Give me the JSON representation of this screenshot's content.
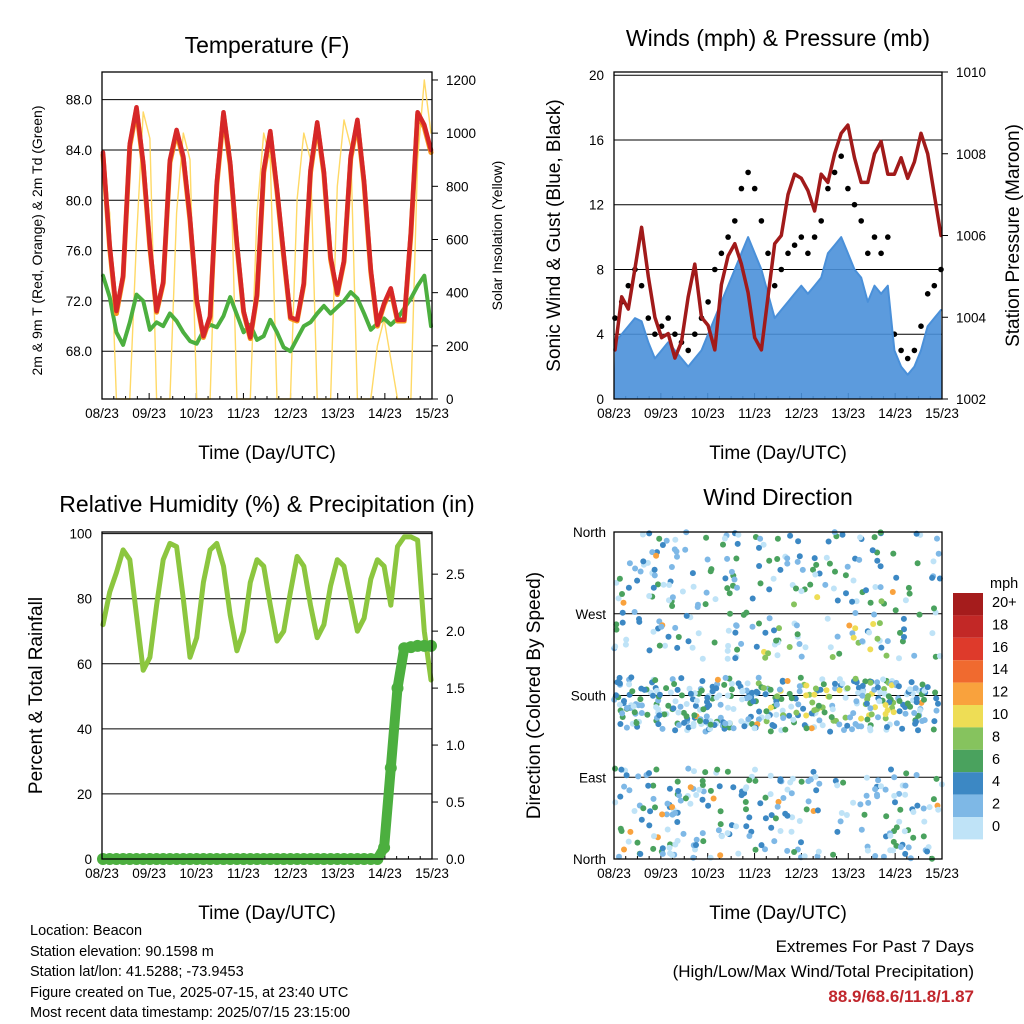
{
  "chart_data": [
    {
      "type": "line",
      "title": "Temperature (F)",
      "xlabel": "Time (Day/UTC)",
      "ylabel": "2m & 9m T (Red, Orange) & 2m Td (Green)",
      "ylabel_right": "Solar Insolation (Yellow)",
      "x_ticks": [
        "08/23",
        "09/23",
        "10/23",
        "11/23",
        "12/23",
        "13/23",
        "14/23",
        "15/23"
      ],
      "y_ticks": [
        "68.0",
        "72.0",
        "76.0",
        "80.0",
        "84.0",
        "88.0"
      ],
      "y_right_ticks": [
        "0",
        "200",
        "400",
        "600",
        "800",
        "1000",
        "1200"
      ],
      "ylim": [
        64.2,
        90.2
      ],
      "ylim_right": [
        0,
        1230
      ],
      "grid": true,
      "series": [
        {
          "name": "2m T",
          "color": "#d62728",
          "values": [
            83.8,
            76.4,
            71.2,
            74.0,
            84.5,
            87.4,
            83.0,
            76.4,
            71.2,
            73.5,
            83.2,
            85.6,
            83.5,
            78.6,
            72.1,
            69.2,
            70.8,
            81.4,
            87.0,
            83.0,
            76.6,
            71.2,
            69.1,
            72.5,
            82.4,
            85.5,
            80.9,
            75.7,
            70.7,
            70.5,
            73.4,
            82.4,
            86.2,
            82.3,
            75.5,
            72.6,
            75.2,
            83.5,
            86.4,
            81.5,
            74.5,
            70.1,
            71.8,
            73.0,
            70.5,
            70.5,
            77.5,
            87.0,
            86.0,
            84.0
          ]
        },
        {
          "name": "9m T",
          "color": "#f7941d",
          "values": [
            83.6,
            76.2,
            71.0,
            73.9,
            84.3,
            87.2,
            82.8,
            76.2,
            71.1,
            73.4,
            83.0,
            85.4,
            83.3,
            78.4,
            72.0,
            69.1,
            70.7,
            81.2,
            86.8,
            82.8,
            76.4,
            71.1,
            69.0,
            72.4,
            82.2,
            85.3,
            80.7,
            75.5,
            70.6,
            70.4,
            73.3,
            82.2,
            86.0,
            82.1,
            75.3,
            72.5,
            75.1,
            83.3,
            86.2,
            81.3,
            74.3,
            70.0,
            71.7,
            72.9,
            70.4,
            70.4,
            77.3,
            86.8,
            85.8,
            83.8
          ]
        },
        {
          "name": "2m Td",
          "color": "#4caf3f",
          "values": [
            74.0,
            72.3,
            69.5,
            68.5,
            70.3,
            72.5,
            72.0,
            69.7,
            70.3,
            70.0,
            71.0,
            70.4,
            69.5,
            68.8,
            68.6,
            69.6,
            70.1,
            69.9,
            70.8,
            72.3,
            70.9,
            69.5,
            70.1,
            68.9,
            69.2,
            70.5,
            69.5,
            68.3,
            68.0,
            69.0,
            70.0,
            70.3,
            71.0,
            71.6,
            71.0,
            71.5,
            72.0,
            72.7,
            72.2,
            71.0,
            69.7,
            70.2,
            70.6,
            70.1,
            70.6,
            71.4,
            72.2,
            73.2,
            74.0,
            70.0
          ]
        },
        {
          "name": "Solar Insolation",
          "color": "#ffd966",
          "axis": "right",
          "values": [
            850,
            700,
            0,
            0,
            0,
            600,
            1080,
            980,
            0,
            0,
            0,
            700,
            1000,
            900,
            0,
            0,
            0,
            800,
            1050,
            950,
            0,
            0,
            0,
            700,
            1000,
            900,
            0,
            0,
            0,
            750,
            1000,
            900,
            0,
            0,
            0,
            800,
            1050,
            950,
            0,
            0,
            0,
            200,
            300,
            150,
            0,
            0,
            0,
            900,
            1200,
            1000
          ]
        }
      ]
    },
    {
      "type": "scatter",
      "title": "Winds (mph) & Pressure (mb)",
      "xlabel": "Time (Day/UTC)",
      "ylabel": "Sonic Wind & Gust (Blue, Black)",
      "ylabel_right": "Station Pressure (Maroon)",
      "x_ticks": [
        "08/23",
        "09/23",
        "10/23",
        "11/23",
        "12/23",
        "13/23",
        "14/23",
        "15/23"
      ],
      "y_ticks": [
        "0",
        "4",
        "8",
        "12",
        "16",
        "20"
      ],
      "y_right_ticks": [
        "1002",
        "1004",
        "1006",
        "1008",
        "1010"
      ],
      "ylim": [
        0,
        20.2
      ],
      "ylim_right": [
        1002,
        1010
      ],
      "grid": true,
      "series": [
        {
          "name": "Sonic Wind",
          "color": "#4a90d9",
          "values": [
            3.5,
            4.0,
            4.5,
            5.0,
            4.8,
            3.5,
            2.5,
            3.0,
            3.5,
            3.0,
            2.5,
            2.0,
            2.5,
            3.0,
            4.0,
            5.0,
            6.0,
            7.0,
            8.0,
            9.0,
            10.0,
            9.0,
            8.0,
            6.5,
            5.0,
            5.5,
            6.0,
            6.5,
            7.0,
            6.5,
            7.0,
            7.5,
            9.0,
            9.5,
            10.0,
            9.0,
            8.0,
            7.5,
            6.0,
            7.0,
            6.5,
            7.0,
            3.0,
            2.0,
            1.5,
            2.0,
            3.0,
            4.5,
            5.0,
            5.5
          ]
        },
        {
          "name": "Gust",
          "color": "#000000",
          "values": [
            5.0,
            6.0,
            7.0,
            8.0,
            7.0,
            5.0,
            4.0,
            4.5,
            5.0,
            4.0,
            3.5,
            3.0,
            4.0,
            5.0,
            6.0,
            8.0,
            9.0,
            10.0,
            11.0,
            13.0,
            14.0,
            13.0,
            11.0,
            9.0,
            7.0,
            8.0,
            9.0,
            9.5,
            10.0,
            9.0,
            10.0,
            11.0,
            13.0,
            14.0,
            15.0,
            13.0,
            12.0,
            11.0,
            9.0,
            10.0,
            9.0,
            10.0,
            4.0,
            3.0,
            2.5,
            3.0,
            4.5,
            6.5,
            7.0,
            8.0
          ]
        },
        {
          "name": "Station Pressure",
          "color": "#a11a1a",
          "axis": "right",
          "values": [
            1003.2,
            1004.5,
            1004.2,
            1005.2,
            1006.2,
            1005.0,
            1004.0,
            1003.5,
            1003.6,
            1003.0,
            1003.4,
            1004.5,
            1005.3,
            1004.0,
            1003.8,
            1003.2,
            1004.8,
            1005.5,
            1005.8,
            1005.3,
            1004.6,
            1003.5,
            1003.2,
            1004.5,
            1005.8,
            1006.0,
            1007.0,
            1007.5,
            1007.4,
            1007.1,
            1006.6,
            1007.5,
            1007.3,
            1008.0,
            1008.5,
            1008.7,
            1007.9,
            1007.3,
            1007.3,
            1008.0,
            1008.3,
            1007.5,
            1007.5,
            1007.9,
            1007.4,
            1007.8,
            1008.5,
            1008.0,
            1007.0,
            1006.0
          ]
        }
      ]
    },
    {
      "type": "line",
      "title": "Relative Humidity (%) & Precipitation (in)",
      "xlabel": "Time (Day/UTC)",
      "ylabel": "Percent & Total Rainfall",
      "x_ticks": [
        "08/23",
        "09/23",
        "10/23",
        "11/23",
        "12/23",
        "13/23",
        "14/23",
        "15/23"
      ],
      "y_ticks": [
        "0",
        "20",
        "40",
        "60",
        "80",
        "100"
      ],
      "y_right_ticks": [
        "0.0",
        "0.5",
        "1.0",
        "1.5",
        "2.0",
        "2.5"
      ],
      "ylim": [
        0,
        100.5
      ],
      "ylim_right": [
        0,
        2.87
      ],
      "grid": true,
      "series": [
        {
          "name": "Relative Humidity",
          "color": "#8cc63f",
          "values": [
            72,
            82,
            88,
            95,
            92,
            75,
            58,
            62,
            78,
            92,
            97,
            96,
            80,
            62,
            68,
            85,
            95,
            97,
            90,
            75,
            64,
            70,
            85,
            92,
            90,
            78,
            67,
            70,
            82,
            93,
            90,
            78,
            68,
            72,
            84,
            92,
            90,
            80,
            70,
            74,
            86,
            92,
            90,
            78,
            96,
            99,
            99,
            98,
            70,
            55
          ]
        },
        {
          "name": "Total Precipitation",
          "color": "#4caf3f",
          "axis": "right",
          "values": [
            0,
            0,
            0,
            0,
            0,
            0,
            0,
            0,
            0,
            0,
            0,
            0,
            0,
            0,
            0,
            0,
            0,
            0,
            0,
            0,
            0,
            0,
            0,
            0,
            0,
            0,
            0,
            0,
            0,
            0,
            0,
            0,
            0,
            0,
            0,
            0,
            0,
            0,
            0,
            0,
            0,
            0,
            0.1,
            0.8,
            1.5,
            1.85,
            1.86,
            1.87,
            1.87,
            1.87
          ]
        }
      ]
    },
    {
      "type": "scatter",
      "title": "Wind Direction",
      "xlabel": "Time (Day/UTC)",
      "ylabel": "Direction (Colored By Speed)",
      "x_ticks": [
        "08/23",
        "09/23",
        "10/23",
        "11/23",
        "12/23",
        "13/23",
        "14/23",
        "15/23"
      ],
      "y_ticks": [
        "North",
        "East",
        "South",
        "West",
        "North"
      ],
      "ylim": [
        0,
        360
      ],
      "grid": true,
      "legend": {
        "title": "mph",
        "labels": [
          "20+",
          "18",
          "16",
          "14",
          "12",
          "10",
          "8",
          "6",
          "4",
          "2",
          "0"
        ],
        "colors": [
          "#a51c1c",
          "#c22826",
          "#de3a2b",
          "#f06a2f",
          "#f9a23d",
          "#eedd55",
          "#86c35e",
          "#4aa25e",
          "#3c88c4",
          "#7eb8e6",
          "#bfe3f7"
        ]
      }
    }
  ],
  "footer": {
    "location": "Location: Beacon",
    "elevation": "Station elevation: 90.1598 m",
    "latlon": "Station lat/lon: 41.5288; -73.9453",
    "created": "Figure created on Tue, 2025-07-15, at 23:40 UTC",
    "recent": "Most recent data timestamp: 2025/07/15 23:15:00"
  },
  "extremes": {
    "heading": "Extremes For Past 7 Days",
    "subheading": "(High/Low/Max Wind/Total Precipitation)",
    "values": "88.9/68.6/11.8/1.87"
  }
}
